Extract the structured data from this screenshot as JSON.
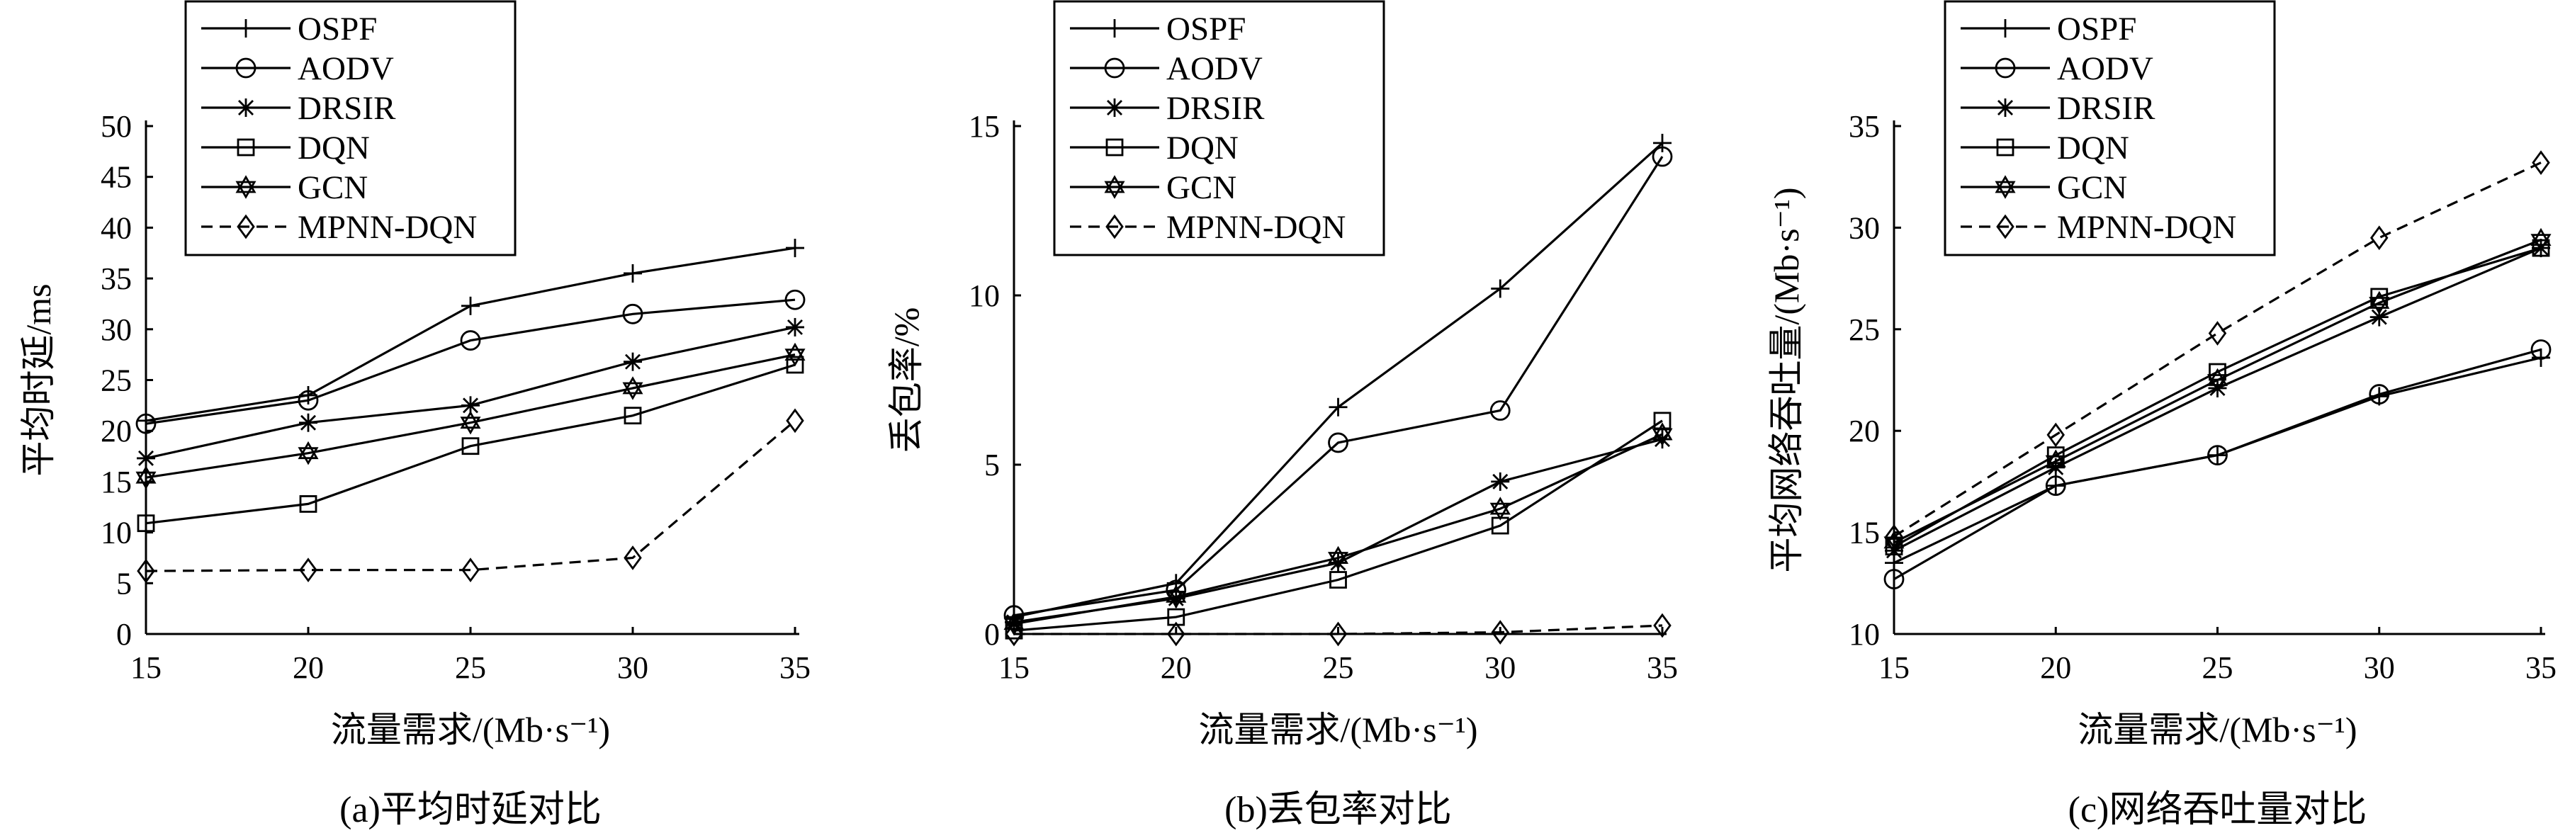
{
  "chart_data": [
    {
      "type": "line",
      "caption": "(a)平均时延对比",
      "xlabel": "流量需求/(Mb·s⁻¹)",
      "ylabel": "平均时延/ms",
      "x": [
        15,
        20,
        25,
        30,
        35
      ],
      "xlim": [
        15,
        35
      ],
      "xticks": [
        "15",
        "20",
        "25",
        "30",
        "35"
      ],
      "ylim": [
        0,
        50
      ],
      "yticks": [
        "0",
        "5",
        "10",
        "15",
        "20",
        "25",
        "30",
        "35",
        "40",
        "45",
        "50"
      ],
      "legend_position": "top-left",
      "series": [
        {
          "name": "OSPF",
          "values": [
            21,
            23.5,
            32.3,
            35.5,
            38
          ]
        },
        {
          "name": "AODV",
          "values": [
            20.7,
            23,
            28.9,
            31.5,
            32.9
          ]
        },
        {
          "name": "DRSIR",
          "values": [
            17.3,
            20.8,
            22.5,
            26.8,
            30.2
          ]
        },
        {
          "name": "DQN",
          "values": [
            10.9,
            12.8,
            18.5,
            21.5,
            26.5
          ]
        },
        {
          "name": "GCN",
          "values": [
            15.4,
            17.8,
            20.8,
            24.2,
            27.5
          ]
        },
        {
          "name": "MPNN-DQN",
          "values": [
            6.2,
            6.3,
            6.3,
            7.5,
            21
          ]
        }
      ]
    },
    {
      "type": "line",
      "caption": "(b)丢包率对比",
      "xlabel": "流量需求/(Mb·s⁻¹)",
      "ylabel": "丢包率/%",
      "x": [
        15,
        20,
        25,
        30,
        35
      ],
      "xlim": [
        15,
        35
      ],
      "xticks": [
        "15",
        "20",
        "25",
        "30",
        "35"
      ],
      "ylim": [
        0,
        15
      ],
      "yticks": [
        "0",
        "5",
        "10",
        "15"
      ],
      "legend_position": "top-left",
      "series": [
        {
          "name": "OSPF",
          "values": [
            0.5,
            1.5,
            6.7,
            10.2,
            14.5
          ]
        },
        {
          "name": "AODV",
          "values": [
            0.55,
            1.3,
            5.65,
            6.6,
            14.1
          ]
        },
        {
          "name": "DRSIR",
          "values": [
            0.35,
            1.05,
            2.1,
            4.5,
            5.75
          ]
        },
        {
          "name": "DQN",
          "values": [
            0.1,
            0.5,
            1.6,
            3.2,
            6.3
          ]
        },
        {
          "name": "GCN",
          "values": [
            0.3,
            1.1,
            2.25,
            3.7,
            5.9
          ]
        },
        {
          "name": "MPNN-DQN",
          "values": [
            0,
            0,
            0,
            0.05,
            0.25
          ]
        }
      ]
    },
    {
      "type": "line",
      "caption": "(c)网络吞吐量对比",
      "xlabel": "流量需求/(Mb·s⁻¹)",
      "ylabel": "平均网络吞吐量/(Mb·s⁻¹)",
      "x": [
        15,
        20,
        25,
        30,
        35
      ],
      "xlim": [
        15,
        35
      ],
      "xticks": [
        "15",
        "20",
        "25",
        "30",
        "35"
      ],
      "ylim": [
        10,
        35
      ],
      "yticks": [
        "10",
        "15",
        "20",
        "25",
        "30",
        "35"
      ],
      "legend_position": "top-left",
      "series": [
        {
          "name": "OSPF",
          "values": [
            13.5,
            17.3,
            18.8,
            21.7,
            23.6
          ]
        },
        {
          "name": "AODV",
          "values": [
            12.7,
            17.3,
            18.8,
            21.8,
            24
          ]
        },
        {
          "name": "DRSIR",
          "values": [
            14.1,
            18.2,
            22.1,
            25.6,
            29
          ]
        },
        {
          "name": "DQN",
          "values": [
            14.3,
            18.8,
            22.9,
            26.6,
            29
          ]
        },
        {
          "name": "GCN",
          "values": [
            14.5,
            18.5,
            22.5,
            26.3,
            29.4
          ]
        },
        {
          "name": "MPNN-DQN",
          "values": [
            14.8,
            19.8,
            24.8,
            29.5,
            33.2
          ]
        }
      ]
    }
  ]
}
